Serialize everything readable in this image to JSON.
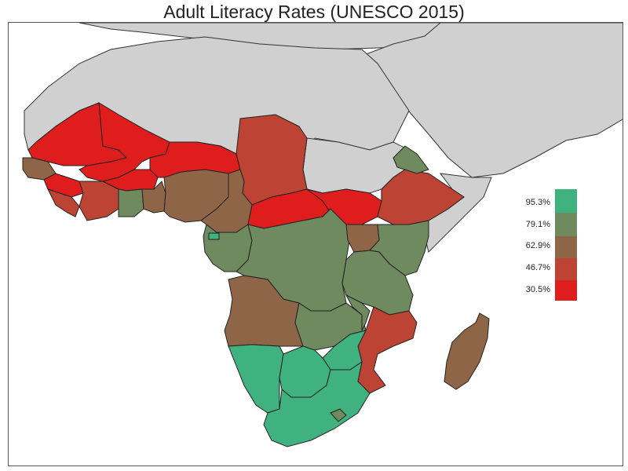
{
  "title": "Adult Literacy Rates (UNESCO 2015)",
  "legend": {
    "labels": [
      "95.3%",
      "79.1%",
      "62.9%",
      "46.7%",
      "30.5%"
    ],
    "colors": [
      "#3fb27f",
      "#6e8a5e",
      "#8f6547",
      "#bd4434",
      "#e01d1d"
    ]
  },
  "map": {
    "neutral_color": "#d0d0d0",
    "ocean_color": "#ffffff"
  }
}
